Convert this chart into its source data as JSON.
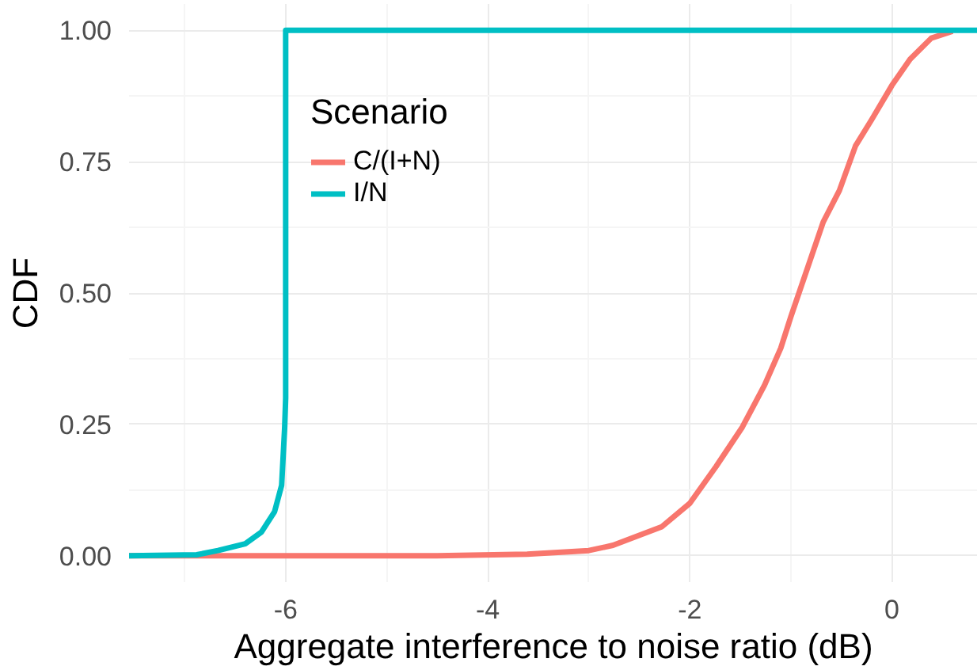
{
  "chart_data": {
    "type": "line",
    "xlabel": "Aggregate interference to noise ratio (dB)",
    "ylabel": "CDF",
    "legend_title": "Scenario",
    "legend": "top left",
    "grid": true,
    "line_style": "solid",
    "marker": "none",
    "xlim": [
      -7.55,
      0.85
    ],
    "ylim": [
      -0.05,
      1.05
    ],
    "xticks": [
      -6,
      -4,
      -2,
      0
    ],
    "yticks": [
      {
        "value": 0,
        "label": "0.00"
      },
      {
        "value": 0.25,
        "label": "0.25"
      },
      {
        "value": 0.5,
        "label": "0.50"
      },
      {
        "value": 0.75,
        "label": "0.75"
      },
      {
        "value": 1,
        "label": "1.00"
      }
    ],
    "series": [
      {
        "name": "C/(I+N)",
        "color": "#f8766d",
        "x": [
          -7.55,
          -4.5,
          -3.61,
          -3.0,
          -2.76,
          -2.28,
          -2.0,
          -1.74,
          -1.48,
          -1.26,
          -1.1,
          -1.0,
          -0.84,
          -0.68,
          -0.52,
          -0.36,
          -0.2,
          0,
          0.18,
          0.39,
          0.6
        ],
        "values": [
          0,
          0,
          0.003,
          0.01,
          0.02,
          0.055,
          0.1,
          0.17,
          0.245,
          0.325,
          0.395,
          0.455,
          0.545,
          0.635,
          0.695,
          0.78,
          0.83,
          0.895,
          0.945,
          0.985,
          0.998
        ]
      },
      {
        "name": "I/N",
        "color": "#00bfc4",
        "x": [
          -7.55,
          -6.88,
          -6.67,
          -6.4,
          -6.24,
          -6.11,
          -6.04,
          -6.01,
          -6.0,
          -6.0,
          0.85
        ],
        "values": [
          0,
          0.002,
          0.01,
          0.023,
          0.045,
          0.084,
          0.134,
          0.243,
          0.3,
          1.0,
          1.0
        ]
      }
    ]
  }
}
